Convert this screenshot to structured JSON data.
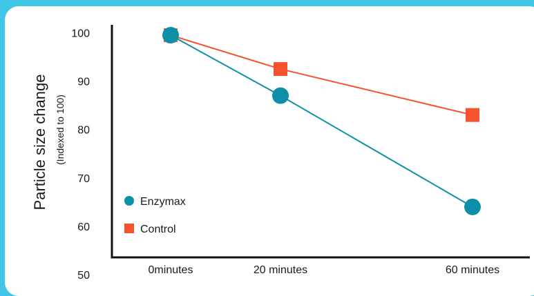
{
  "chart_data": {
    "type": "line",
    "categories": [
      "0minutes",
      "20 minutes",
      "60 minutes"
    ],
    "x": [
      0,
      20,
      60
    ],
    "ylabel": "Particle size change",
    "ylabel_sub": "(Indexed to 100)",
    "xlabel": "",
    "title": "",
    "ylim": [
      50,
      100
    ],
    "yticks": [
      100,
      90,
      80,
      70,
      60,
      50
    ],
    "grid": false,
    "legend_position": "bottom-left",
    "series": [
      {
        "name": "Enzymax",
        "values": [
          99.5,
          87,
          64
        ],
        "color": "#0e8fa8",
        "marker": "circle"
      },
      {
        "name": "Control",
        "values": [
          99.5,
          92.5,
          83
        ],
        "color": "#f4532e",
        "marker": "square"
      }
    ]
  }
}
